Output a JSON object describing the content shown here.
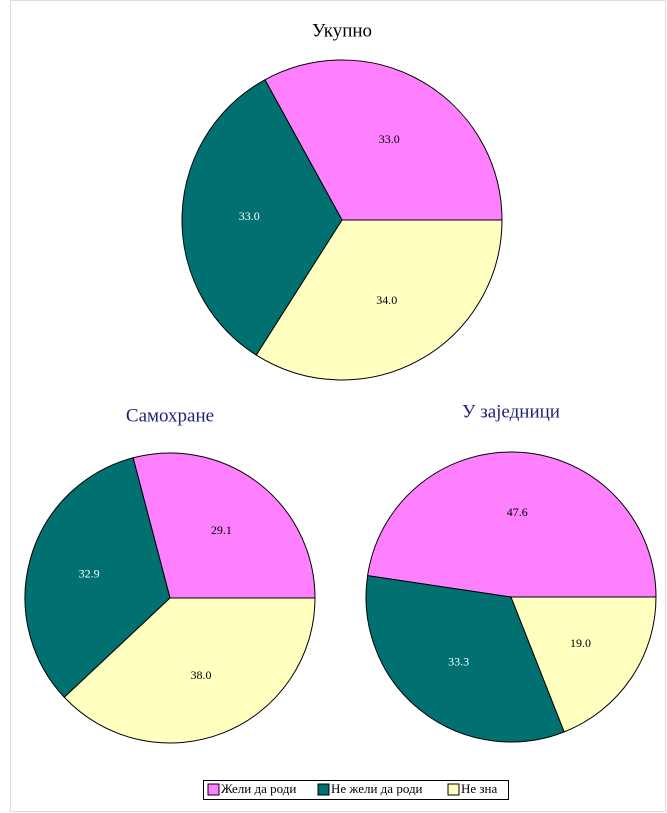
{
  "chart_data": [
    {
      "type": "pie",
      "title": "Укупно",
      "title_color": "#000000",
      "categories": [
        "Жели да роди",
        "Не жели да роди",
        "Не зна"
      ],
      "values": [
        33.0,
        33.0,
        34.0
      ],
      "value_labels": [
        "33.0",
        "33.0",
        "34.0"
      ],
      "colors": [
        "#ff80ff",
        "#007070",
        "#ffffc0"
      ]
    },
    {
      "type": "pie",
      "title": "Самохране",
      "title_color": "#1f1f7a",
      "categories": [
        "Жели да роди",
        "Не жели да роди",
        "Не зна"
      ],
      "values": [
        29.1,
        32.9,
        38.0
      ],
      "value_labels": [
        "29.1",
        "32.9",
        "38.0"
      ],
      "colors": [
        "#ff80ff",
        "#007070",
        "#ffffc0"
      ]
    },
    {
      "type": "pie",
      "title": "У заједници",
      "title_color": "#1f1f7a",
      "categories": [
        "Жели да роди",
        "Не жели да роди",
        "Не зна"
      ],
      "values": [
        47.6,
        33.3,
        19.0
      ],
      "value_labels": [
        "47.6",
        "33.3",
        "19.0"
      ],
      "colors": [
        "#ff80ff",
        "#007070",
        "#ffffc0"
      ]
    }
  ]
}
